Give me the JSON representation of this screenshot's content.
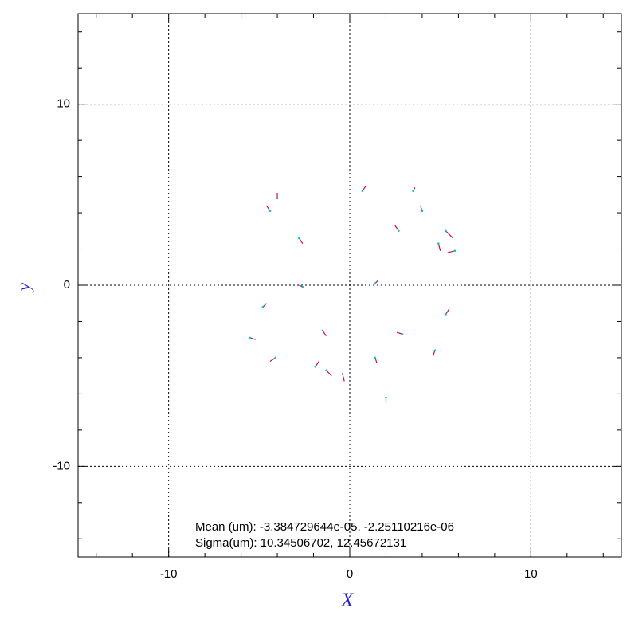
{
  "chart_data": {
    "type": "quiver",
    "xlabel": "X",
    "ylabel": "y",
    "annotations": [
      "Mean (um): -3.384729644e-05, -2.25110216e-06",
      "Sigma(um): 10.34506702, 12.45672131"
    ],
    "xlim": [
      -15,
      15
    ],
    "ylim": [
      -15,
      15
    ],
    "xticks": [
      -10,
      0,
      10
    ],
    "yticks": [
      -10,
      0,
      10
    ],
    "xminorticks": [
      -14,
      -12,
      -8,
      -6,
      -4,
      -2,
      2,
      4,
      6,
      8,
      12,
      14
    ],
    "yminorticks": [
      -14,
      -12,
      -8,
      -6,
      -4,
      -2,
      2,
      4,
      6,
      8,
      12,
      14
    ],
    "grid": true,
    "color": "#e0004a",
    "point_color": "#00c8c8",
    "x": [
      5.3,
      5.8,
      3.5,
      -4.0,
      2.0,
      -0.4,
      -1.3,
      -5.5,
      4.9,
      -4.4,
      -2.8,
      2.7,
      -4.1,
      -1.9,
      4.7,
      5.3,
      0.7,
      4.0,
      1.4,
      -2.6,
      -1.5,
      2.9,
      -4.8,
      1.4
    ],
    "y": [
      3.0,
      1.9,
      5.2,
      4.8,
      -6.2,
      -4.9,
      -4.7,
      -2.9,
      2.3,
      4.1,
      2.6,
      3.0,
      -4.0,
      -4.5,
      -3.6,
      -1.6,
      5.2,
      4.1,
      0.1,
      -0.1,
      -2.5,
      -2.7,
      -1.2,
      -4.0
    ],
    "u": [
      0.4,
      -0.4,
      0.1,
      0.0,
      0.0,
      0.1,
      0.3,
      0.3,
      0.1,
      -0.2,
      0.2,
      -0.2,
      -0.3,
      0.2,
      -0.1,
      0.2,
      0.2,
      -0.1,
      0.2,
      -0.2,
      0.2,
      -0.3,
      0.2,
      0.1
    ],
    "v": [
      -0.4,
      -0.1,
      0.2,
      0.3,
      -0.3,
      -0.4,
      -0.3,
      -0.1,
      -0.4,
      0.3,
      -0.3,
      0.3,
      -0.2,
      0.3,
      -0.3,
      0.3,
      0.3,
      0.3,
      0.2,
      0.1,
      -0.3,
      0.1,
      0.2,
      -0.3
    ]
  }
}
